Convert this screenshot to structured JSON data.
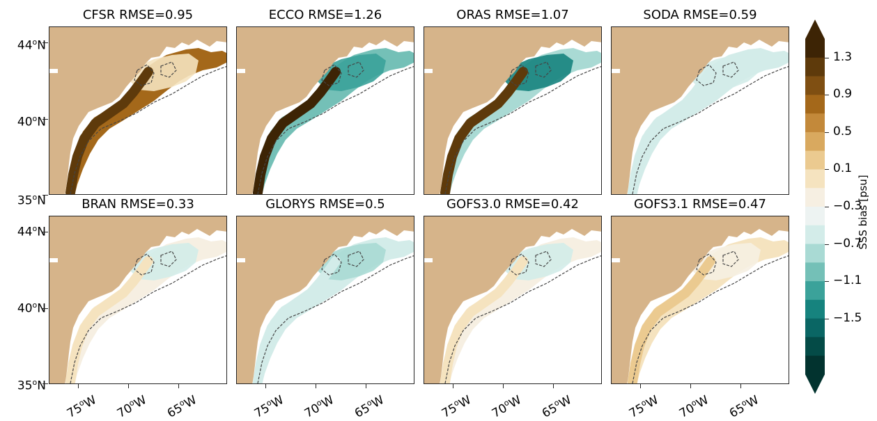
{
  "panels": [
    {
      "title": "CFSR RMSE=0.95",
      "bias": 0.9,
      "shelf_bias": 1.2,
      "gulf_bias": 0.3
    },
    {
      "title": "ECCO RMSE=1.26",
      "bias": -0.6,
      "shelf_bias": 1.5,
      "gulf_bias": -0.7
    },
    {
      "title": "ORAS RMSE=1.07",
      "bias": -0.4,
      "shelf_bias": 1.3,
      "gulf_bias": -0.9
    },
    {
      "title": "SODA RMSE=0.59",
      "bias": -0.3,
      "shelf_bias": -0.3,
      "gulf_bias": -0.2
    },
    {
      "title": "BRAN RMSE=0.33",
      "bias": 0.1,
      "shelf_bias": 0.3,
      "gulf_bias": -0.2
    },
    {
      "title": "GLORYS RMSE=0.5",
      "bias": -0.2,
      "shelf_bias": -0.3,
      "gulf_bias": -0.4
    },
    {
      "title": "GOFS3.0 RMSE=0.42",
      "bias": 0.1,
      "shelf_bias": 0.3,
      "gulf_bias": -0.2
    },
    {
      "title": "GOFS3.1 RMSE=0.47",
      "bias": 0.2,
      "shelf_bias": 0.4,
      "gulf_bias": 0.1
    }
  ],
  "y_ticks": [
    {
      "lat": "44",
      "suffix": "N"
    },
    {
      "lat": "40",
      "suffix": "N"
    },
    {
      "lat": "35",
      "suffix": "N"
    }
  ],
  "x_ticks": [
    {
      "lon": "75",
      "suffix": "W"
    },
    {
      "lon": "70",
      "suffix": "W"
    },
    {
      "lon": "65",
      "suffix": "W"
    }
  ],
  "colorbar": {
    "label": "SSS bias [psu]",
    "ticks": [
      "1.3",
      "0.9",
      "0.5",
      "0.1",
      "−0.3",
      "−0.7",
      "−1.1",
      "−1.5"
    ],
    "colors": [
      "#3d2405",
      "#5e3a0b",
      "#7f4f12",
      "#a4681a",
      "#c3893a",
      "#d9a95f",
      "#ebca90",
      "#f5e3bf",
      "#f6efe2",
      "#edf3f2",
      "#d3ece9",
      "#a9dad4",
      "#74c0b7",
      "#3ba29a",
      "#16837e",
      "#0a6664",
      "#044b47",
      "#02332f"
    ]
  },
  "degree_symbol": "o"
}
